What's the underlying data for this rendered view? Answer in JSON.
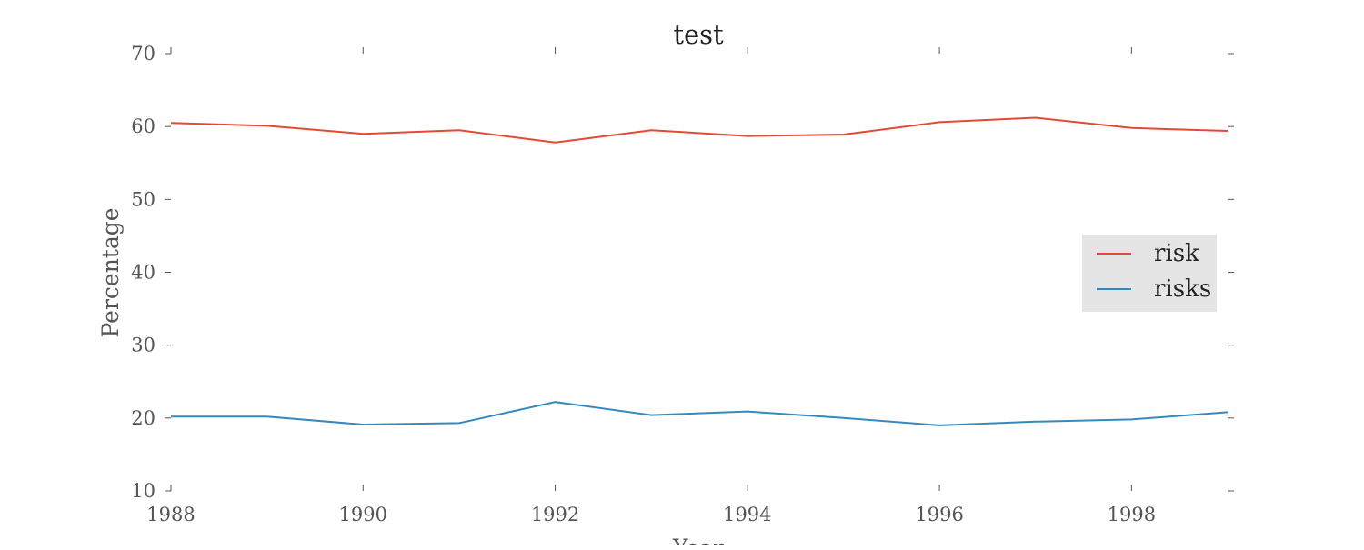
{
  "chart_data": {
    "type": "line",
    "title": "test",
    "xlabel": "Year",
    "ylabel": "Percentage",
    "x": [
      1988,
      1989,
      1990,
      1991,
      1992,
      1993,
      1994,
      1995,
      1996,
      1997,
      1998,
      1999
    ],
    "x_ticks": [
      1988,
      1990,
      1992,
      1994,
      1996,
      1998
    ],
    "y_ticks": [
      10,
      20,
      30,
      40,
      50,
      60,
      70
    ],
    "xlim": [
      1988,
      1999
    ],
    "ylim": [
      10,
      70
    ],
    "grid": false,
    "legend_position": "center-right",
    "series": [
      {
        "name": "risk",
        "color": "#e24a33",
        "values": [
          60.5,
          60.1,
          59.0,
          59.5,
          57.8,
          59.5,
          58.7,
          58.9,
          60.6,
          61.2,
          59.8,
          59.4
        ]
      },
      {
        "name": "risks",
        "color": "#348abd",
        "values": [
          20.2,
          20.2,
          19.1,
          19.3,
          22.2,
          20.4,
          20.9,
          20.0,
          19.0,
          19.5,
          19.8,
          20.8
        ]
      }
    ]
  }
}
